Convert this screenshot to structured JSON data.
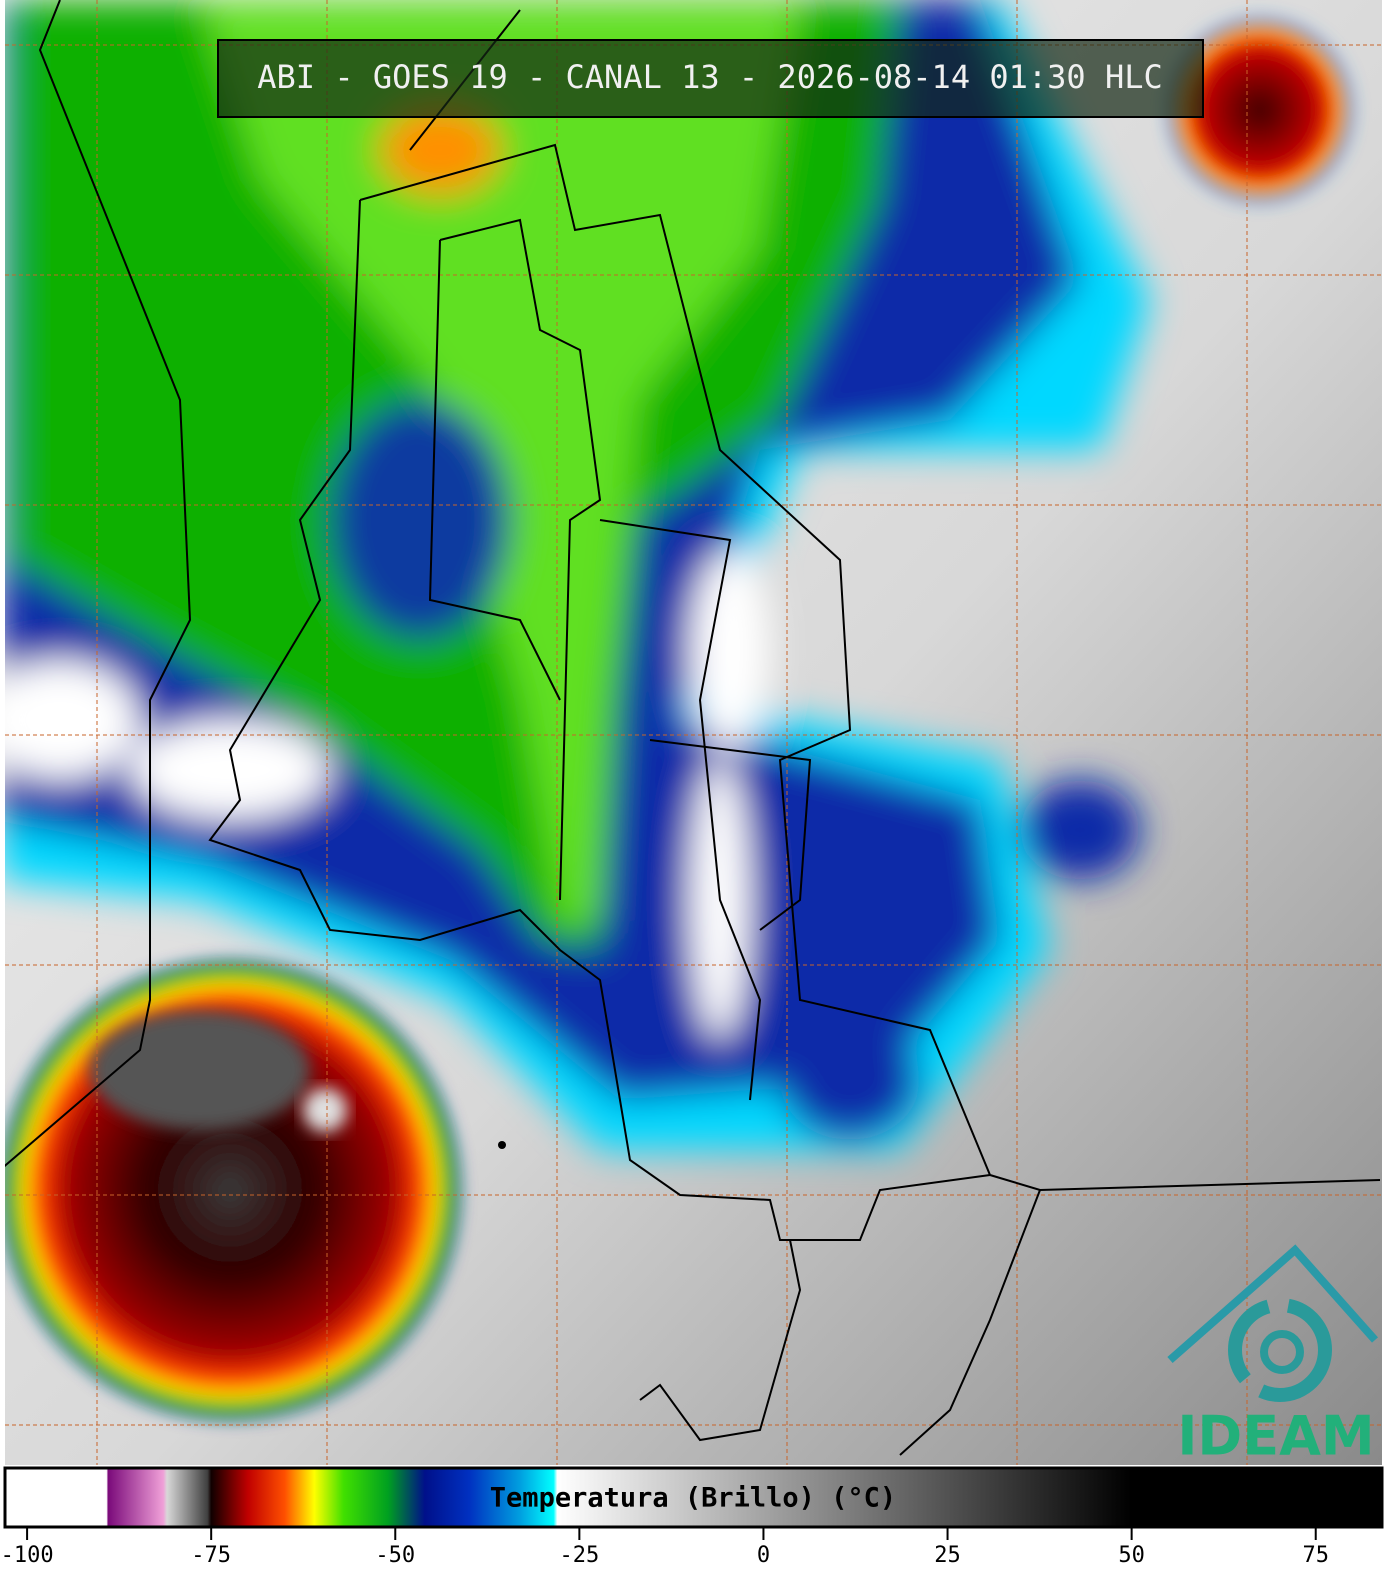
{
  "title": "ABI - GOES 19 - CANAL 13 - 2026-08-14 01:30 HLC",
  "logo": "IDEAM",
  "colorbar": {
    "label": "Temperatura (Brillo) (°C)",
    "lim": [
      -103,
      84
    ],
    "ticks": [
      -100,
      -75,
      -50,
      -25,
      0,
      25,
      50,
      75
    ],
    "color_stops": [
      {
        "value": -103,
        "color": "#ffffff"
      },
      {
        "value": -89.2,
        "color": "#ffffff"
      },
      {
        "value": -89,
        "color": "#7a0a7a"
      },
      {
        "value": -81.5,
        "color": "#f0a0d8"
      },
      {
        "value": -81,
        "color": "#d8d8d8"
      },
      {
        "value": -75.5,
        "color": "#404040"
      },
      {
        "value": -75,
        "color": "#100000"
      },
      {
        "value": -70,
        "color": "#c00000"
      },
      {
        "value": -65,
        "color": "#ff5000"
      },
      {
        "value": -61,
        "color": "#ffff00"
      },
      {
        "value": -57,
        "color": "#40e000"
      },
      {
        "value": -51,
        "color": "#00a020"
      },
      {
        "value": -46,
        "color": "#00108a"
      },
      {
        "value": -40,
        "color": "#0030c0"
      },
      {
        "value": -33,
        "color": "#00a0e0"
      },
      {
        "value": -28.5,
        "color": "#00ffff"
      },
      {
        "value": -28,
        "color": "#ffffff"
      },
      {
        "value": 50,
        "color": "#000000"
      },
      {
        "value": 84,
        "color": "#000000"
      }
    ]
  }
}
